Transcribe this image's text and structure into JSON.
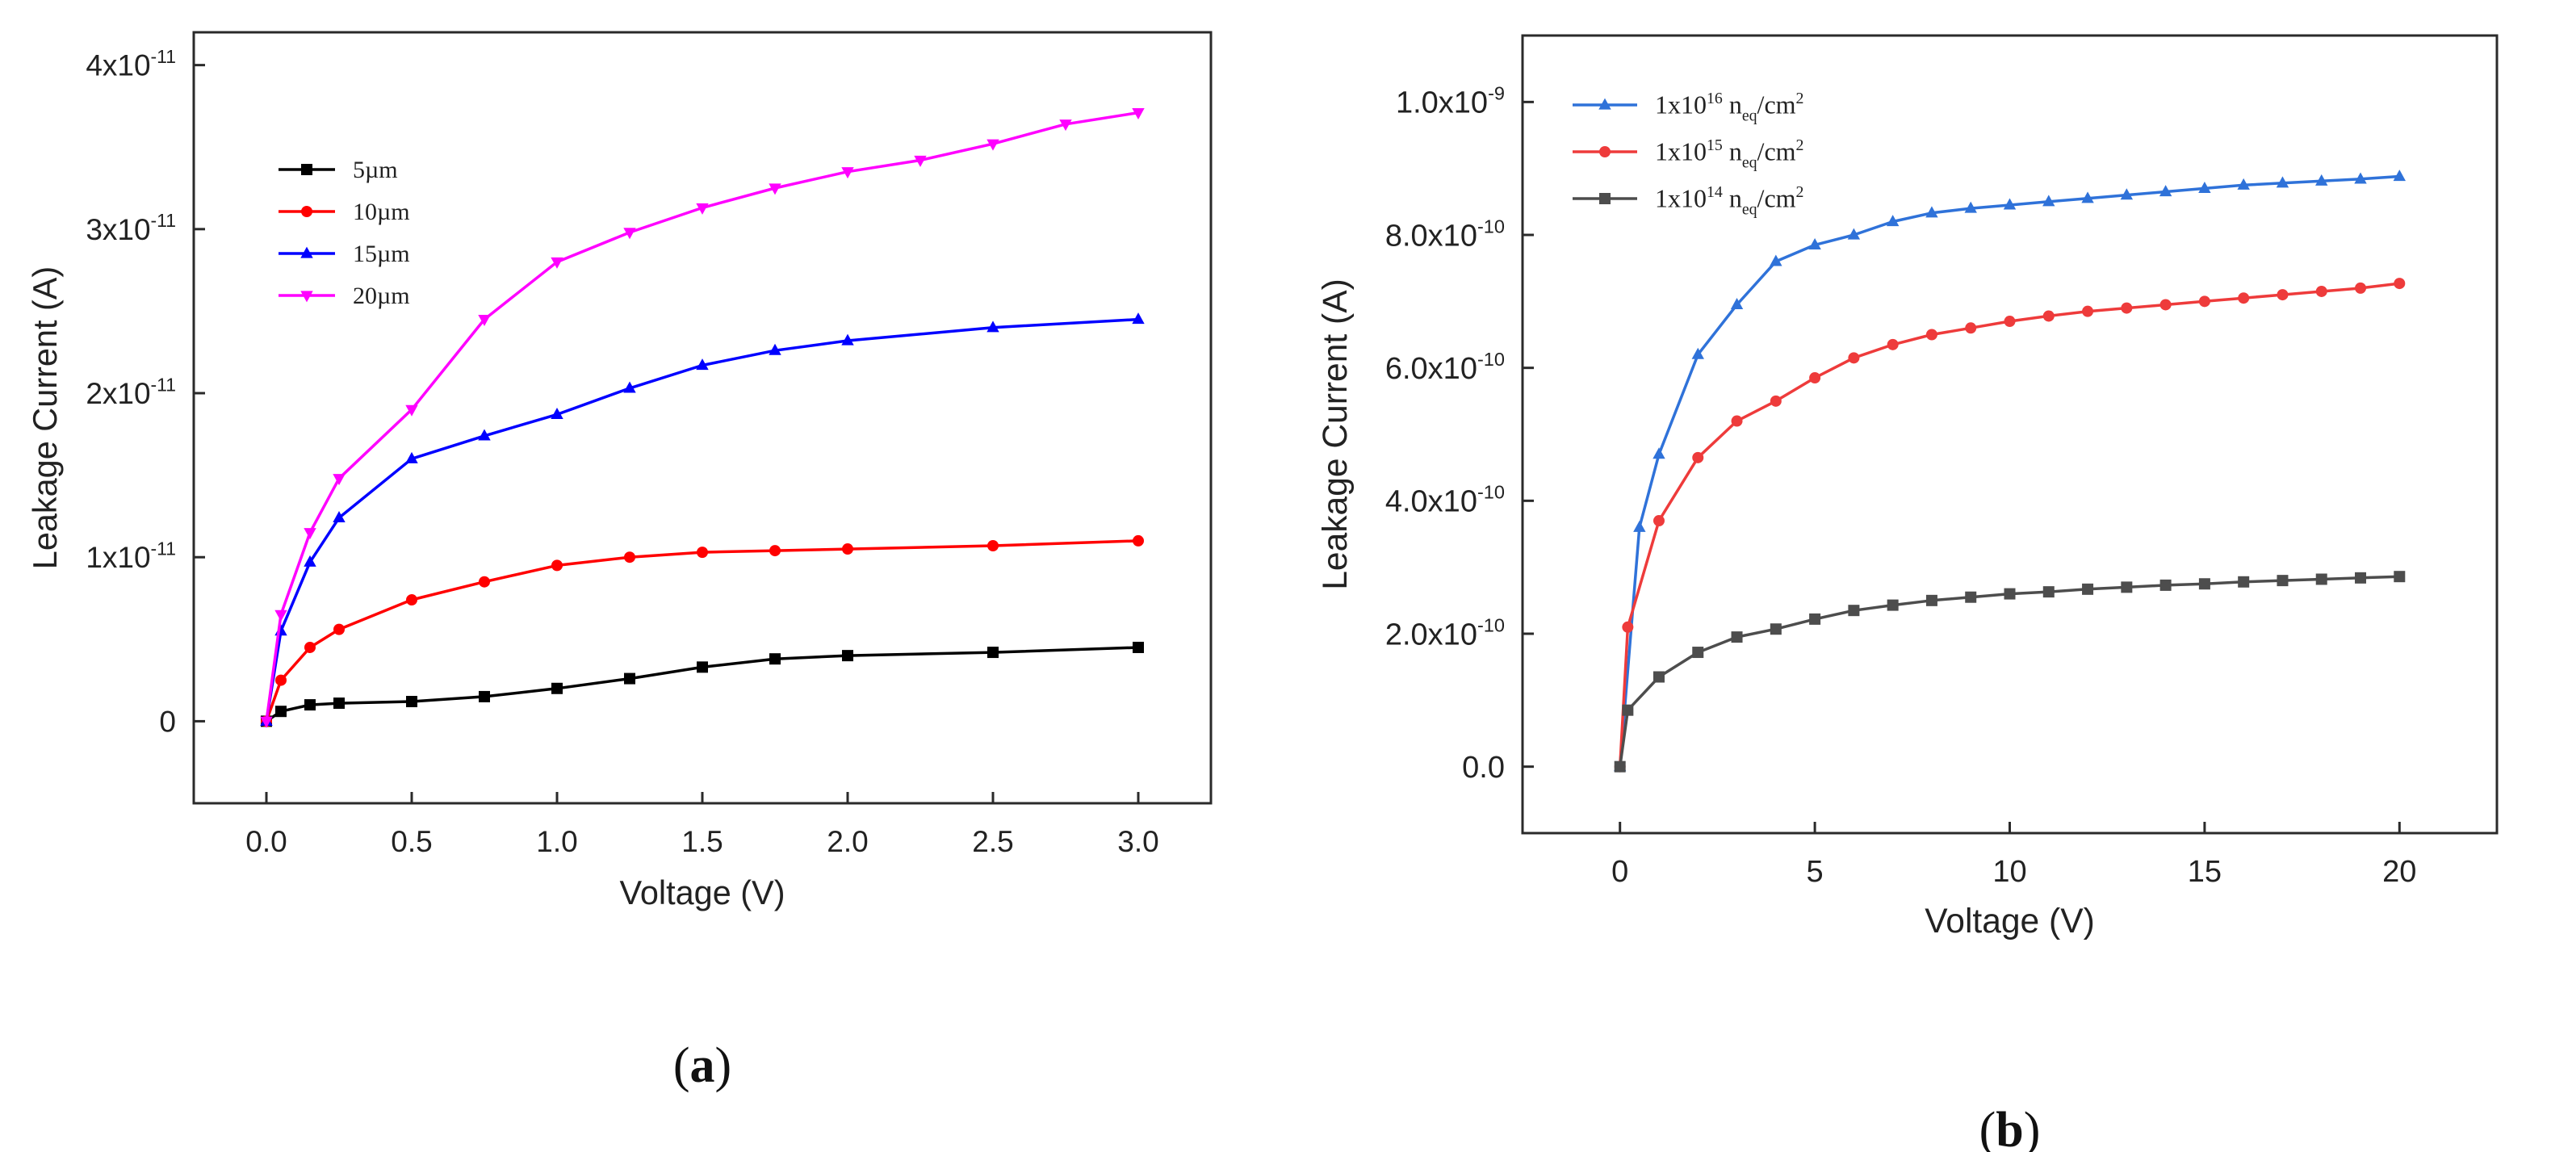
{
  "chart_data": [
    {
      "id": "a",
      "type": "line",
      "caption": {
        "open": "(",
        "letter": "a",
        "close": ")"
      },
      "xlabel": "Voltage (V)",
      "ylabel": "Leakage Current (A)",
      "xlim": [
        -0.25,
        3.25
      ],
      "ylim": [
        -5e-12,
        4.2e-11
      ],
      "xticks": [
        0,
        0.5,
        1,
        1.5,
        2,
        2.5,
        3
      ],
      "xtick_labels": [
        "0.0",
        "0.5",
        "1.0",
        "1.5",
        "2.0",
        "2.5",
        "3.0"
      ],
      "yticks": [
        0,
        1e-11,
        2e-11,
        3e-11,
        4e-11
      ],
      "ytick_labels": [
        {
          "base": "0",
          "exp": ""
        },
        {
          "base": "1x10",
          "exp": "-11"
        },
        {
          "base": "2x10",
          "exp": "-11"
        },
        {
          "base": "3x10",
          "exp": "-11"
        },
        {
          "base": "4x10",
          "exp": "-11"
        }
      ],
      "legend_position": "upper-left",
      "series": [
        {
          "name": "5µm",
          "label_parts": [
            {
              "t": "5µm",
              "s": ""
            }
          ],
          "color": "#000000",
          "marker": "square",
          "x": [
            0,
            0.05,
            0.15,
            0.25,
            0.5,
            0.75,
            1.0,
            1.25,
            1.5,
            1.75,
            2.0,
            2.5,
            3.0
          ],
          "y": [
            0,
            6e-13,
            1e-12,
            1.1e-12,
            1.2e-12,
            1.5e-12,
            2e-12,
            2.6e-12,
            3.3e-12,
            3.8e-12,
            4e-12,
            4.2e-12,
            4.5e-12
          ]
        },
        {
          "name": "10µm",
          "label_parts": [
            {
              "t": "10µm",
              "s": ""
            }
          ],
          "color": "#ff0000",
          "marker": "circle",
          "x": [
            0,
            0.05,
            0.15,
            0.25,
            0.5,
            0.75,
            1.0,
            1.25,
            1.5,
            1.75,
            2.0,
            2.5,
            3.0
          ],
          "y": [
            0,
            2.5e-12,
            4.5e-12,
            5.6e-12,
            7.4e-12,
            8.5e-12,
            9.5e-12,
            1e-11,
            1.03e-11,
            1.04e-11,
            1.05e-11,
            1.07e-11,
            1.1e-11
          ]
        },
        {
          "name": "15µm",
          "label_parts": [
            {
              "t": "15µm",
              "s": ""
            }
          ],
          "color": "#0000ff",
          "marker": "triangle-up",
          "x": [
            0,
            0.05,
            0.15,
            0.25,
            0.5,
            0.75,
            1.0,
            1.25,
            1.5,
            1.75,
            2.0,
            2.5,
            3.0
          ],
          "y": [
            0,
            5.5e-12,
            9.7e-12,
            1.24e-11,
            1.6e-11,
            1.74e-11,
            1.87e-11,
            2.03e-11,
            2.17e-11,
            2.26e-11,
            2.32e-11,
            2.4e-11,
            2.45e-11
          ]
        },
        {
          "name": "20µm",
          "label_parts": [
            {
              "t": "20µm",
              "s": ""
            }
          ],
          "color": "#ff00ff",
          "marker": "triangle-down",
          "x": [
            0,
            0.05,
            0.15,
            0.25,
            0.5,
            0.75,
            1.0,
            1.25,
            1.5,
            1.75,
            2.0,
            2.25,
            2.5,
            2.75,
            3.0
          ],
          "y": [
            0,
            6.5e-12,
            1.15e-11,
            1.48e-11,
            1.9e-11,
            2.45e-11,
            2.8e-11,
            2.98e-11,
            3.13e-11,
            3.25e-11,
            3.35e-11,
            3.42e-11,
            3.52e-11,
            3.64e-11,
            3.71e-11
          ]
        }
      ]
    },
    {
      "id": "b",
      "type": "line",
      "caption": {
        "open": "(",
        "letter": "b",
        "close": ")"
      },
      "xlabel": "Voltage (V)",
      "ylabel": "Leakage Current (A)",
      "xlim": [
        -2.5,
        22.5
      ],
      "ylim": [
        -1e-10,
        1.1e-09
      ],
      "xticks": [
        0,
        5,
        10,
        15,
        20
      ],
      "xtick_labels": [
        "0",
        "5",
        "10",
        "15",
        "20"
      ],
      "yticks": [
        0,
        2e-10,
        4e-10,
        6e-10,
        8e-10,
        1e-09
      ],
      "ytick_labels": [
        {
          "base": "0.0",
          "exp": ""
        },
        {
          "base": "2.0x10",
          "exp": "-10"
        },
        {
          "base": "4.0x10",
          "exp": "-10"
        },
        {
          "base": "6.0x10",
          "exp": "-10"
        },
        {
          "base": "8.0x10",
          "exp": "-10"
        },
        {
          "base": "1.0x10",
          "exp": "-9"
        }
      ],
      "legend_position": "upper-left",
      "series": [
        {
          "name": "1x10^16 n_eq/cm^2",
          "label_parts": [
            {
              "t": "1x10",
              "s": ""
            },
            {
              "t": "16",
              "s": "sup"
            },
            {
              "t": " n",
              "s": ""
            },
            {
              "t": "eq",
              "s": "sub"
            },
            {
              "t": "/cm",
              "s": ""
            },
            {
              "t": "2",
              "s": "sup"
            }
          ],
          "color": "#2f72d9",
          "marker": "triangle-up",
          "x": [
            0,
            0.5,
            1,
            2,
            3,
            4,
            5,
            6,
            7,
            8,
            9,
            10,
            11,
            12,
            13,
            14,
            15,
            16,
            17,
            18,
            19,
            20
          ],
          "y": [
            0,
            3.6e-10,
            4.7e-10,
            6.2e-10,
            6.95e-10,
            7.6e-10,
            7.85e-10,
            8e-10,
            8.2e-10,
            8.33e-10,
            8.4e-10,
            8.45e-10,
            8.5e-10,
            8.55e-10,
            8.6e-10,
            8.65e-10,
            8.7e-10,
            8.75e-10,
            8.78e-10,
            8.81e-10,
            8.84e-10,
            8.88e-10
          ]
        },
        {
          "name": "1x10^15 n_eq/cm^2",
          "label_parts": [
            {
              "t": "1x10",
              "s": ""
            },
            {
              "t": "15",
              "s": "sup"
            },
            {
              "t": " n",
              "s": ""
            },
            {
              "t": "eq",
              "s": "sub"
            },
            {
              "t": "/cm",
              "s": ""
            },
            {
              "t": "2",
              "s": "sup"
            }
          ],
          "color": "#ee3b3b",
          "marker": "circle",
          "x": [
            0,
            0.2,
            1,
            2,
            3,
            4,
            5,
            6,
            7,
            8,
            9,
            10,
            11,
            12,
            13,
            14,
            15,
            16,
            17,
            18,
            19,
            20
          ],
          "y": [
            0,
            2.1e-10,
            3.7e-10,
            4.65e-10,
            5.2e-10,
            5.5e-10,
            5.85e-10,
            6.15e-10,
            6.35e-10,
            6.5e-10,
            6.6e-10,
            6.7e-10,
            6.78e-10,
            6.85e-10,
            6.9e-10,
            6.95e-10,
            7e-10,
            7.05e-10,
            7.1e-10,
            7.15e-10,
            7.2e-10,
            7.27e-10
          ]
        },
        {
          "name": "1x10^14 n_eq/cm^2",
          "label_parts": [
            {
              "t": "1x10",
              "s": ""
            },
            {
              "t": "14",
              "s": "sup"
            },
            {
              "t": " n",
              "s": ""
            },
            {
              "t": "eq",
              "s": "sub"
            },
            {
              "t": "/cm",
              "s": ""
            },
            {
              "t": "2",
              "s": "sup"
            }
          ],
          "color": "#4d4d4d",
          "marker": "square",
          "x": [
            0,
            0.2,
            1,
            2,
            3,
            4,
            5,
            6,
            7,
            8,
            9,
            10,
            11,
            12,
            13,
            14,
            15,
            16,
            17,
            18,
            19,
            20
          ],
          "y": [
            0,
            8.5e-11,
            1.35e-10,
            1.72e-10,
            1.95e-10,
            2.07e-10,
            2.22e-10,
            2.35e-10,
            2.43e-10,
            2.5e-10,
            2.55e-10,
            2.6e-10,
            2.63e-10,
            2.67e-10,
            2.7e-10,
            2.73e-10,
            2.75e-10,
            2.78e-10,
            2.8e-10,
            2.82e-10,
            2.84e-10,
            2.86e-10
          ]
        }
      ]
    }
  ]
}
